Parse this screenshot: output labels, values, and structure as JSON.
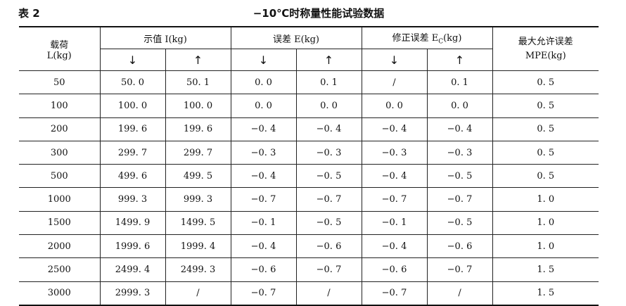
{
  "caption": {
    "label": "表 2",
    "title": "−10℃时称量性能试验数据"
  },
  "headers": {
    "load_line1": "载荷",
    "load_line2": "L(kg)",
    "indication": "示值 I(kg)",
    "error": "误差 E(kg)",
    "corrected_error": "修正误差 E",
    "corrected_error_sub": "C",
    "corrected_error_unit": "(kg)",
    "mpe_line1": "最大允许误差",
    "mpe_line2": "MPE(kg)",
    "down_arrow": "↓",
    "up_arrow": "↑"
  },
  "rows": [
    [
      "50",
      "50. 0",
      "50. 1",
      "0. 0",
      "0. 1",
      "/",
      "0. 1",
      "0. 5"
    ],
    [
      "100",
      "100. 0",
      "100. 0",
      "0. 0",
      "0. 0",
      "0. 0",
      "0. 0",
      "0. 5"
    ],
    [
      "200",
      "199. 6",
      "199. 6",
      "−0. 4",
      "−0. 4",
      "−0. 4",
      "−0. 4",
      "0. 5"
    ],
    [
      "300",
      "299. 7",
      "299. 7",
      "−0. 3",
      "−0. 3",
      "−0. 3",
      "−0. 3",
      "0. 5"
    ],
    [
      "500",
      "499. 6",
      "499. 5",
      "−0. 4",
      "−0. 5",
      "−0. 4",
      "−0. 5",
      "0. 5"
    ],
    [
      "1000",
      "999. 3",
      "999. 3",
      "−0. 7",
      "−0. 7",
      "−0. 7",
      "−0. 7",
      "1. 0"
    ],
    [
      "1500",
      "1499. 9",
      "1499. 5",
      "−0. 1",
      "−0. 5",
      "−0. 1",
      "−0. 5",
      "1. 0"
    ],
    [
      "2000",
      "1999. 6",
      "1999. 4",
      "−0. 4",
      "−0. 6",
      "−0. 4",
      "−0. 6",
      "1. 0"
    ],
    [
      "2500",
      "2499. 4",
      "2499. 3",
      "−0. 6",
      "−0. 7",
      "−0. 6",
      "−0. 7",
      "1. 5"
    ],
    [
      "3000",
      "2999. 3",
      "/",
      "−0. 7",
      "/",
      "−0. 7",
      "/",
      "1. 5"
    ]
  ]
}
